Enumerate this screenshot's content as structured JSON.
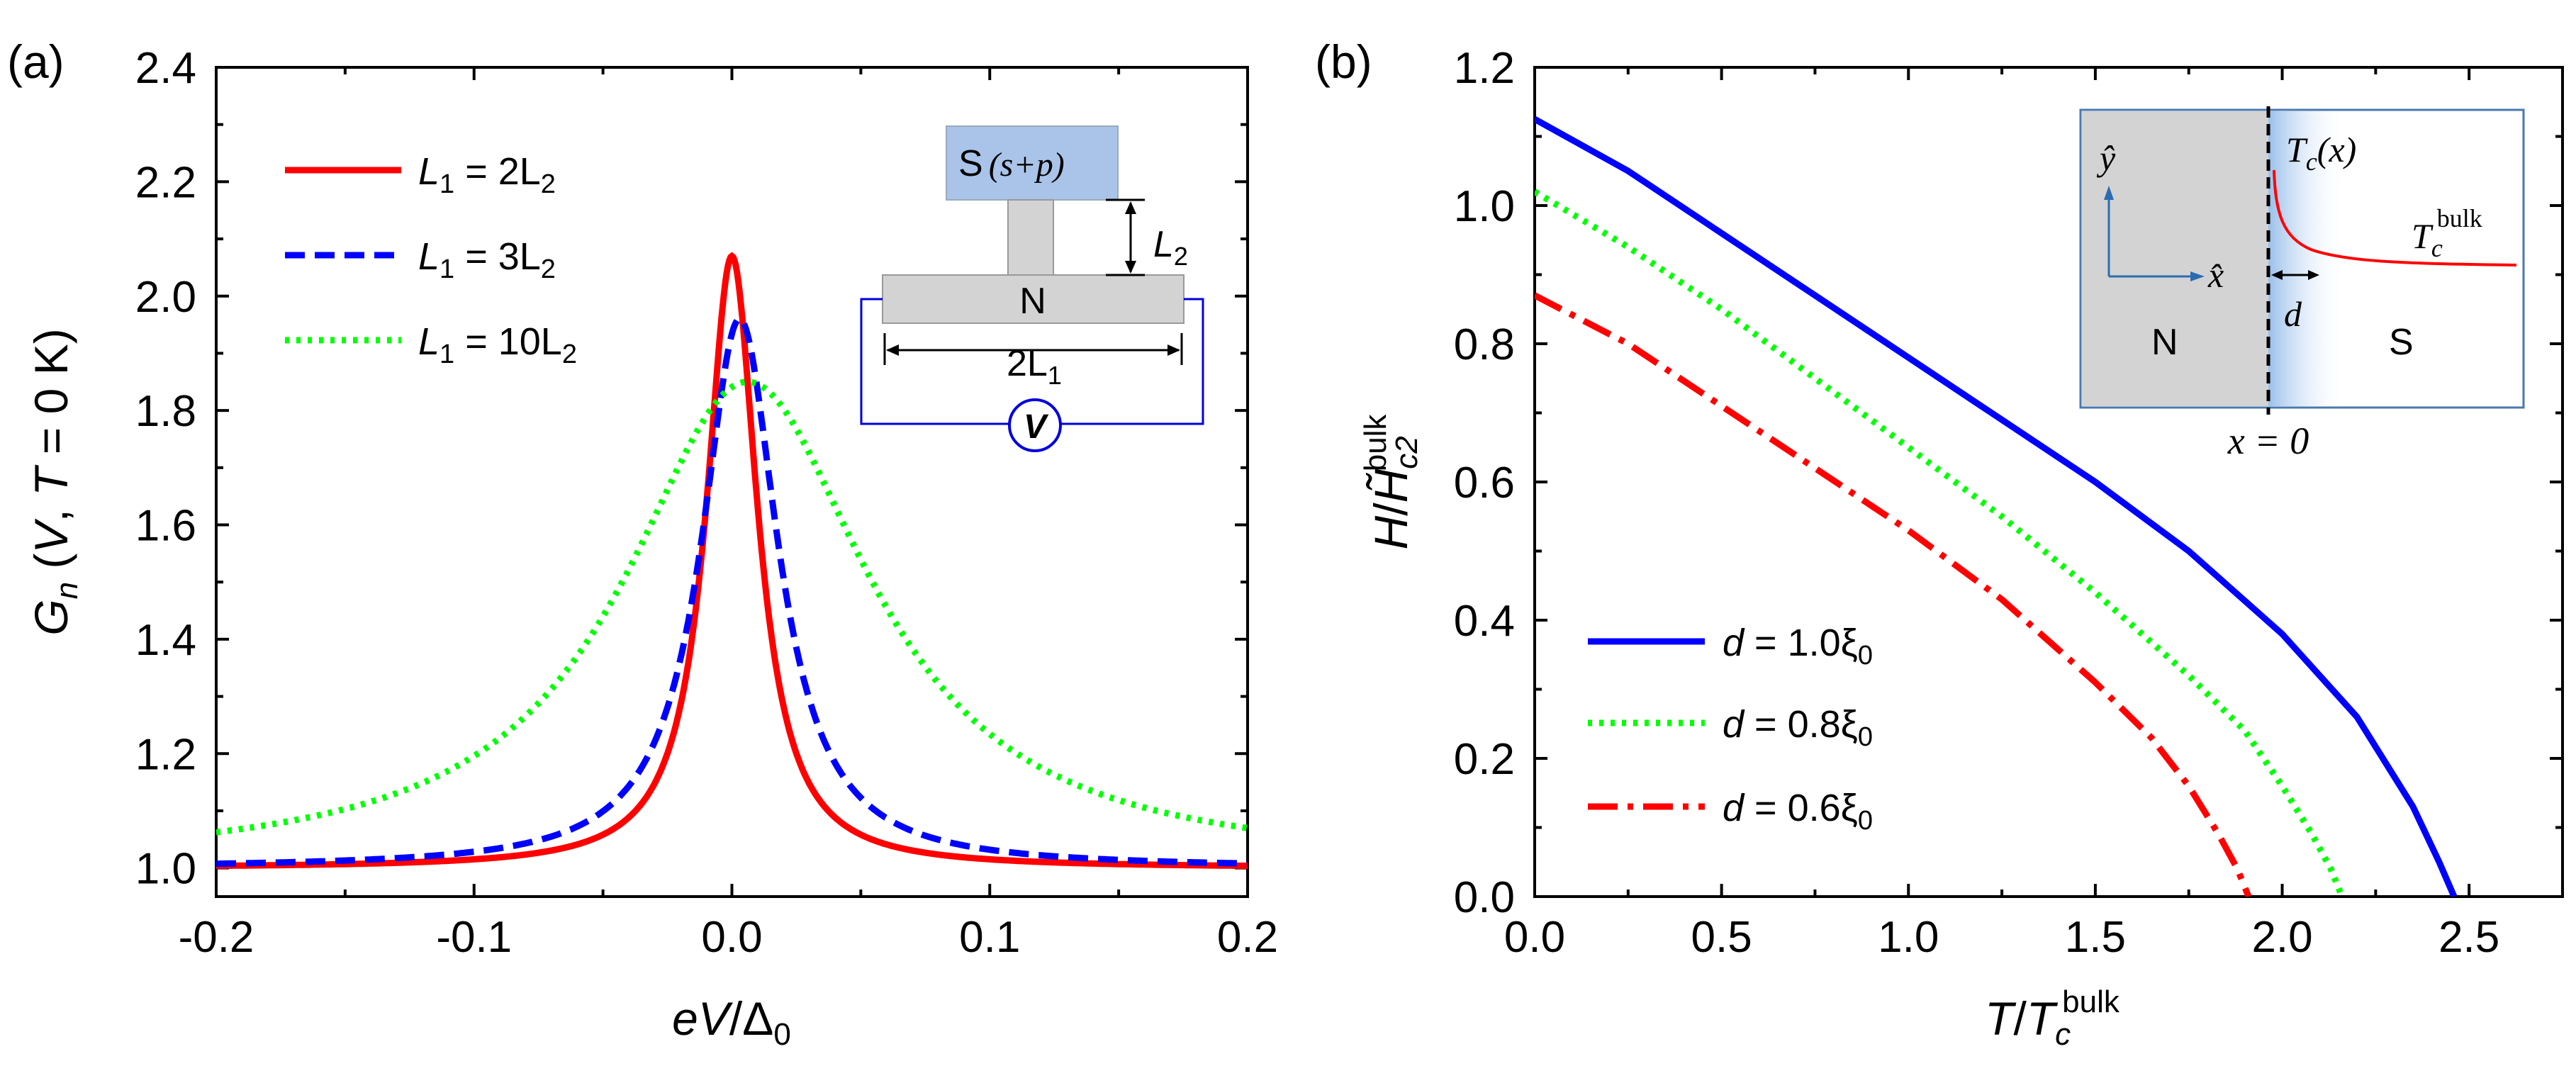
{
  "chart_data": [
    {
      "type": "line",
      "panel_label": "(a)",
      "xlabel": "eV/Δ₀",
      "ylabel": "Gₙ(V,T = 0 K)",
      "xlim": [
        -0.2,
        0.2
      ],
      "ylim": [
        0.95,
        2.4
      ],
      "xticks": [
        -0.2,
        -0.1,
        0.0,
        0.1,
        0.2
      ],
      "xtick_labels": [
        "-0.2",
        "-0.1",
        "0.0",
        "0.1",
        "0.2"
      ],
      "yticks": [
        1.0,
        1.2,
        1.4,
        1.6,
        1.8,
        2.0,
        2.2,
        2.4
      ],
      "ytick_labels": [
        "1.0",
        "1.2",
        "1.4",
        "1.6",
        "1.8",
        "2.0",
        "2.2",
        "2.4"
      ],
      "legend_position": "top-left",
      "series": [
        {
          "name": "L₁ = 2L₂",
          "legend_main": "L",
          "legend_sub": "1",
          "legend_mid": " = 2L",
          "legend_sub2": "2",
          "color": "#ff0000",
          "dash": "solid",
          "peak": 2.07,
          "peak_x": 0.0,
          "width": 0.012
        },
        {
          "name": "L₁ = 3L₂",
          "legend_main": "L",
          "legend_sub": "1",
          "legend_mid": " = 3L",
          "legend_sub2": "2",
          "color": "#0000ff",
          "dash": "dashed",
          "peak": 1.96,
          "peak_x": 0.003,
          "width": 0.018
        },
        {
          "name": "L₁ = 10L₂",
          "legend_main": "L",
          "legend_sub": "1",
          "legend_mid": " = 10L",
          "legend_sub2": "2",
          "color": "#00ff00",
          "dash": "dotted",
          "peak": 1.85,
          "peak_x": 0.006,
          "width": 0.058
        }
      ],
      "inset": {
        "s_label": "S",
        "s_phase": "(s+p)",
        "n_label": "N",
        "l2_label": "L",
        "l2_sub": "2",
        "l1_label": "2L",
        "l1_sub": "1",
        "v_label": "V"
      }
    },
    {
      "type": "line",
      "panel_label": "(b)",
      "xlabel": "T/Tc^bulk",
      "ylabel": "H/H̃c2^bulk",
      "xlim": [
        0.0,
        2.75
      ],
      "ylim": [
        0.0,
        1.2
      ],
      "xticks": [
        0.0,
        0.5,
        1.0,
        1.5,
        2.0,
        2.5
      ],
      "xtick_labels": [
        "0.0",
        "0.5",
        "1.0",
        "1.5",
        "2.0",
        "2.5"
      ],
      "yticks": [
        0.0,
        0.2,
        0.4,
        0.6,
        0.8,
        1.0,
        1.2
      ],
      "ytick_labels": [
        "0.0",
        "0.2",
        "0.4",
        "0.6",
        "0.8",
        "1.0",
        "1.2"
      ],
      "legend_position": "bottom-left",
      "series": [
        {
          "name": "d = 1.0ξ₀",
          "legend_d": "d",
          "legend_val": " = 1.0ξ",
          "legend_sub": "0",
          "color": "#0000ff",
          "dash": "solid",
          "x": [
            0.0,
            0.25,
            0.5,
            0.75,
            1.0,
            1.25,
            1.5,
            1.75,
            2.0,
            2.2,
            2.35,
            2.42,
            2.46
          ],
          "y": [
            1.125,
            1.05,
            0.96,
            0.87,
            0.78,
            0.69,
            0.6,
            0.5,
            0.38,
            0.26,
            0.13,
            0.05,
            0.0
          ]
        },
        {
          "name": "d = 0.8ξ₀",
          "legend_d": "d",
          "legend_val": " = 0.8ξ",
          "legend_sub": "0",
          "color": "#00ff00",
          "dash": "dotted",
          "x": [
            0.0,
            0.25,
            0.5,
            0.75,
            1.0,
            1.25,
            1.5,
            1.75,
            1.9,
            2.0,
            2.08,
            2.13,
            2.16
          ],
          "y": [
            1.02,
            0.94,
            0.85,
            0.75,
            0.65,
            0.55,
            0.44,
            0.32,
            0.24,
            0.16,
            0.09,
            0.04,
            0.0
          ]
        },
        {
          "name": "d = 0.6ξ₀",
          "legend_d": "d",
          "legend_val": " = 0.6ξ",
          "legend_sub": "0",
          "color": "#ff0000",
          "dash": "dashdot",
          "x": [
            0.0,
            0.25,
            0.5,
            0.75,
            1.0,
            1.25,
            1.5,
            1.65,
            1.75,
            1.83,
            1.88,
            1.91
          ],
          "y": [
            0.87,
            0.8,
            0.71,
            0.62,
            0.53,
            0.43,
            0.31,
            0.23,
            0.16,
            0.09,
            0.04,
            0.0
          ]
        }
      ],
      "inset": {
        "y_hat": "ŷ",
        "x_hat": "x̂",
        "n_label": "N",
        "s_label": "S",
        "d_label": "d",
        "tcx_label": "Tc(x)",
        "tcx_main": "T",
        "tcx_sub": "c",
        "tcx_arg": "(x)",
        "tcbulk_main": "T",
        "tcbulk_sub": "c",
        "tcbulk_sup": "bulk",
        "x0_label": "x = 0"
      }
    }
  ]
}
